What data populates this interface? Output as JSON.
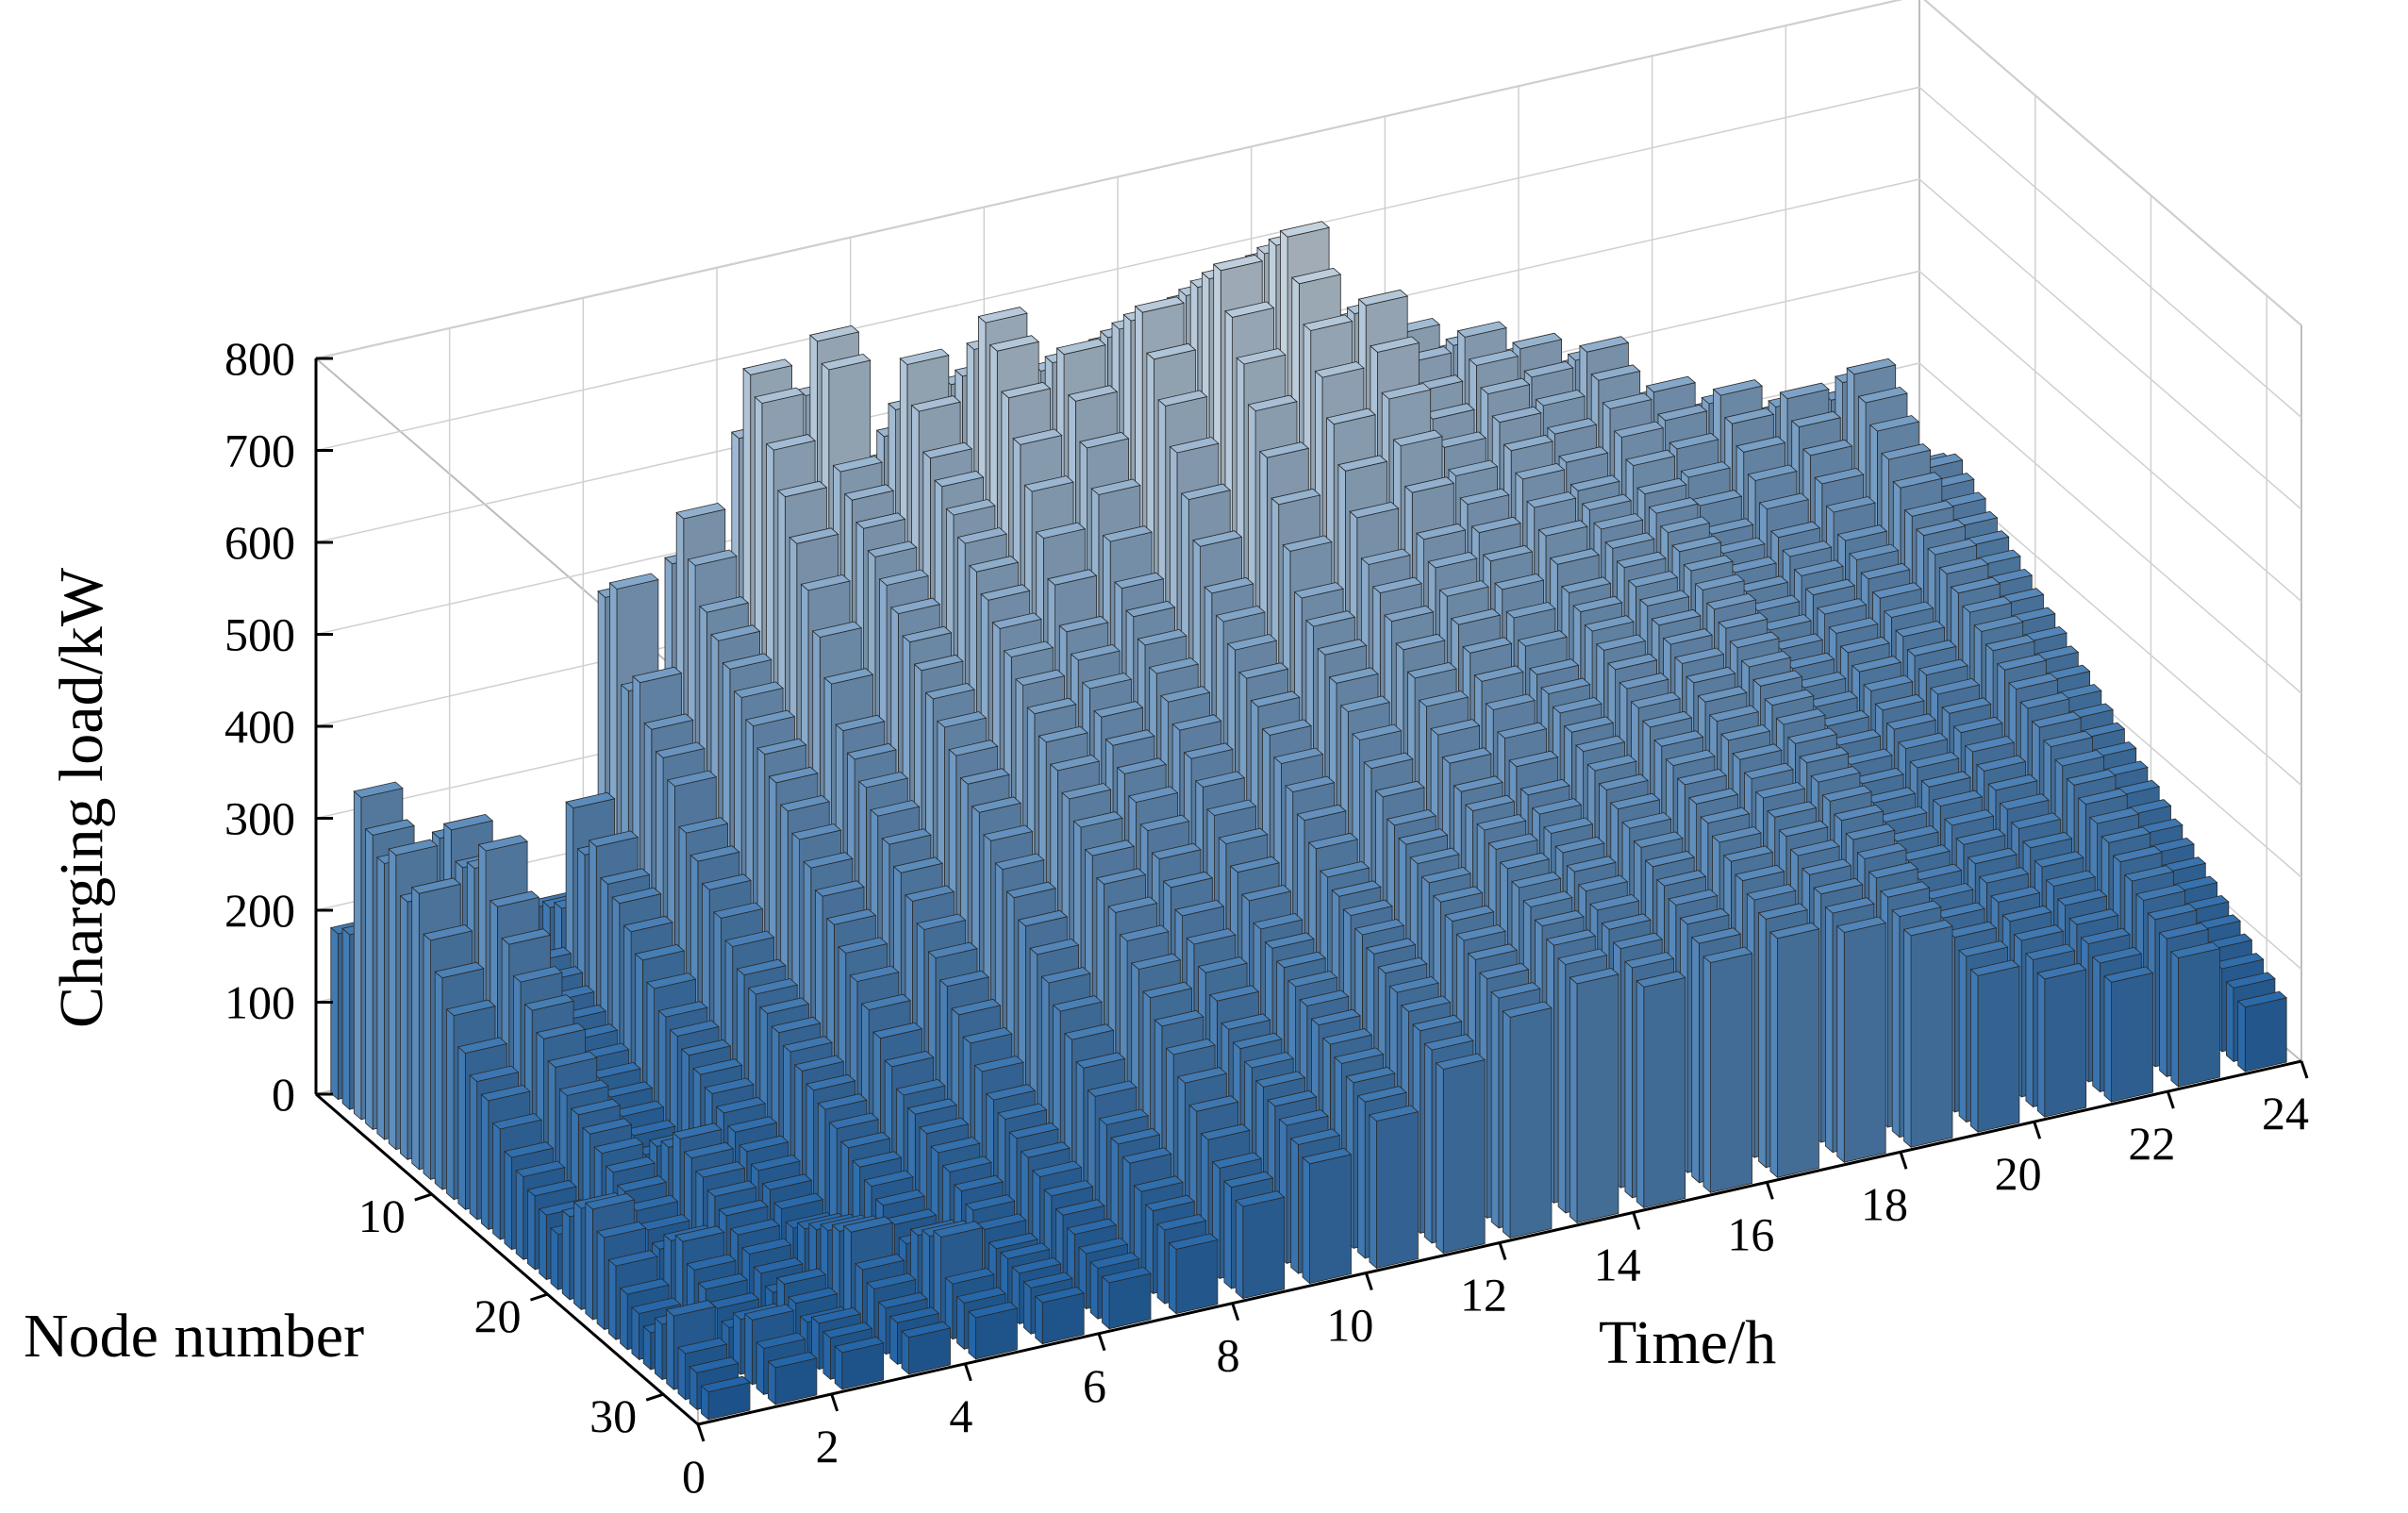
{
  "chart_data": {
    "type": "bar3d",
    "ylabel": "Charging load/kW",
    "xlabel": "Time/h",
    "zlabel": "Node number",
    "ylim": [
      0,
      800
    ],
    "xlim": [
      0,
      24
    ],
    "zlim": [
      0,
      33
    ],
    "y_ticks": [
      "0",
      "100",
      "200",
      "300",
      "400",
      "500",
      "600",
      "700",
      "800"
    ],
    "x_ticks": [
      "0",
      "2",
      "4",
      "6",
      "8",
      "10",
      "12",
      "14",
      "16",
      "18",
      "20",
      "22",
      "24"
    ],
    "z_ticks": [
      "10",
      "20",
      "30"
    ],
    "grid": true,
    "hours": [
      1,
      2,
      3,
      4,
      5,
      6,
      7,
      8,
      9,
      10,
      11,
      12,
      13,
      14,
      15,
      16,
      17,
      18,
      19,
      20,
      21,
      22,
      23,
      24
    ],
    "nodes": [
      1,
      2,
      3,
      4,
      5,
      6,
      7,
      8,
      9,
      10,
      11,
      12,
      13,
      14,
      15,
      16,
      17,
      18,
      19,
      20,
      21,
      22,
      23,
      24,
      25,
      26,
      27,
      28,
      29,
      30,
      31,
      32,
      33
    ],
    "profile_note": "Charging load per hour for each of 33 nodes (estimated from figure)",
    "hourly_envelope": [
      380,
      360,
      300,
      310,
      520,
      560,
      720,
      740,
      700,
      760,
      700,
      740,
      780,
      800,
      720,
      650,
      620,
      580,
      560,
      500,
      480,
      460,
      470,
      350
    ],
    "values_by_hour": [
      [
        180,
        190,
        350,
        320,
        300,
        320,
        280,
        300,
        260,
        230,
        200,
        170,
        150,
        140,
        120,
        100,
        90,
        80,
        70,
        60,
        90,
        110,
        120,
        100,
        80,
        60,
        50,
        40,
        60,
        80,
        50,
        40,
        30
      ],
      [
        200,
        180,
        160,
        300,
        320,
        290,
        300,
        330,
        280,
        250,
        220,
        200,
        180,
        160,
        140,
        130,
        120,
        110,
        100,
        90,
        80,
        70,
        60,
        80,
        90,
        70,
        60,
        50,
        40,
        60,
        70,
        50,
        40
      ],
      [
        150,
        140,
        130,
        120,
        110,
        170,
        160,
        150,
        140,
        130,
        120,
        110,
        100,
        90,
        80,
        70,
        90,
        100,
        120,
        110,
        100,
        90,
        80,
        70,
        60,
        50,
        40,
        60,
        50,
        40,
        50,
        45,
        40
      ],
      [
        160,
        170,
        180,
        300,
        260,
        280,
        250,
        240,
        220,
        200,
        180,
        160,
        150,
        140,
        130,
        120,
        110,
        100,
        90,
        80,
        70,
        60,
        50,
        60,
        70,
        80,
        90,
        100,
        70,
        60,
        50,
        45,
        40
      ],
      [
        480,
        500,
        400,
        420,
        380,
        360,
        340,
        300,
        280,
        260,
        240,
        220,
        200,
        190,
        180,
        170,
        160,
        150,
        140,
        130,
        120,
        110,
        100,
        90,
        80,
        70,
        60,
        80,
        90,
        100,
        60,
        50,
        45
      ],
      [
        500,
        560,
        520,
        480,
        460,
        440,
        420,
        400,
        380,
        360,
        340,
        320,
        300,
        280,
        260,
        240,
        220,
        200,
        180,
        160,
        140,
        130,
        120,
        110,
        100,
        90,
        80,
        70,
        60,
        60,
        55,
        50,
        45
      ],
      [
        620,
        700,
        680,
        640,
        600,
        560,
        520,
        480,
        440,
        400,
        380,
        360,
        340,
        320,
        300,
        280,
        260,
        240,
        220,
        200,
        180,
        160,
        140,
        130,
        120,
        110,
        100,
        90,
        80,
        70,
        60,
        55,
        50
      ],
      [
        650,
        720,
        700,
        600,
        580,
        560,
        540,
        520,
        500,
        480,
        460,
        440,
        420,
        400,
        380,
        360,
        340,
        320,
        300,
        280,
        260,
        240,
        220,
        200,
        180,
        160,
        140,
        130,
        120,
        100,
        90,
        80,
        70
      ],
      [
        560,
        600,
        640,
        700,
        660,
        620,
        600,
        580,
        560,
        540,
        520,
        500,
        480,
        460,
        440,
        420,
        400,
        380,
        360,
        340,
        320,
        300,
        280,
        260,
        240,
        220,
        200,
        180,
        160,
        140,
        120,
        110,
        100
      ],
      [
        580,
        640,
        660,
        700,
        740,
        720,
        680,
        640,
        600,
        560,
        520,
        480,
        460,
        440,
        420,
        400,
        380,
        360,
        340,
        320,
        300,
        280,
        260,
        240,
        220,
        200,
        190,
        180,
        170,
        160,
        150,
        140,
        130
      ],
      [
        600,
        620,
        640,
        660,
        680,
        700,
        660,
        620,
        580,
        540,
        500,
        480,
        460,
        440,
        420,
        400,
        380,
        360,
        340,
        320,
        300,
        280,
        260,
        250,
        240,
        230,
        220,
        210,
        200,
        190,
        180,
        170,
        160
      ],
      [
        620,
        640,
        660,
        680,
        700,
        720,
        740,
        700,
        660,
        620,
        580,
        540,
        500,
        480,
        460,
        440,
        420,
        400,
        380,
        360,
        340,
        320,
        300,
        290,
        280,
        270,
        260,
        250,
        240,
        230,
        220,
        210,
        200
      ],
      [
        640,
        660,
        680,
        700,
        720,
        740,
        760,
        780,
        740,
        700,
        660,
        620,
        580,
        540,
        500,
        480,
        460,
        440,
        420,
        400,
        380,
        360,
        340,
        330,
        320,
        310,
        300,
        290,
        280,
        270,
        260,
        250,
        240
      ],
      [
        660,
        680,
        700,
        720,
        740,
        760,
        780,
        800,
        760,
        720,
        680,
        640,
        600,
        560,
        520,
        500,
        480,
        460,
        440,
        420,
        400,
        380,
        360,
        350,
        340,
        330,
        320,
        310,
        300,
        290,
        280,
        270,
        260
      ],
      [
        560,
        580,
        600,
        620,
        640,
        660,
        680,
        700,
        720,
        680,
        640,
        600,
        560,
        520,
        500,
        480,
        460,
        440,
        420,
        400,
        380,
        360,
        340,
        330,
        320,
        310,
        300,
        290,
        280,
        270,
        260,
        250,
        240
      ],
      [
        540,
        560,
        580,
        600,
        620,
        640,
        620,
        600,
        580,
        560,
        540,
        520,
        500,
        480,
        460,
        440,
        420,
        400,
        390,
        380,
        370,
        360,
        350,
        340,
        330,
        320,
        310,
        300,
        290,
        280,
        270,
        260,
        250
      ],
      [
        520,
        540,
        560,
        580,
        600,
        620,
        600,
        580,
        560,
        540,
        520,
        500,
        480,
        460,
        440,
        430,
        420,
        410,
        400,
        390,
        380,
        370,
        360,
        350,
        340,
        330,
        320,
        310,
        300,
        290,
        280,
        270,
        260
      ],
      [
        500,
        520,
        540,
        560,
        580,
        560,
        540,
        520,
        500,
        480,
        470,
        460,
        450,
        440,
        430,
        420,
        410,
        400,
        390,
        380,
        370,
        360,
        350,
        340,
        330,
        320,
        310,
        300,
        290,
        280,
        270,
        260,
        250
      ],
      [
        480,
        500,
        520,
        540,
        560,
        540,
        520,
        500,
        480,
        460,
        450,
        440,
        430,
        420,
        410,
        400,
        390,
        380,
        370,
        360,
        350,
        340,
        330,
        320,
        310,
        300,
        290,
        280,
        270,
        260,
        250,
        240,
        230
      ],
      [
        420,
        440,
        460,
        480,
        500,
        480,
        460,
        440,
        420,
        400,
        390,
        380,
        370,
        360,
        350,
        340,
        330,
        320,
        310,
        300,
        290,
        280,
        270,
        260,
        250,
        240,
        230,
        220,
        210,
        200,
        190,
        180,
        170
      ],
      [
        400,
        420,
        440,
        460,
        480,
        460,
        440,
        420,
        400,
        380,
        370,
        360,
        350,
        340,
        330,
        320,
        310,
        300,
        290,
        280,
        270,
        260,
        250,
        240,
        230,
        220,
        210,
        200,
        190,
        180,
        170,
        160,
        150
      ],
      [
        380,
        400,
        420,
        440,
        460,
        440,
        420,
        400,
        380,
        360,
        350,
        340,
        330,
        320,
        310,
        300,
        290,
        280,
        270,
        260,
        250,
        240,
        230,
        220,
        210,
        200,
        190,
        180,
        170,
        160,
        150,
        140,
        130
      ],
      [
        380,
        400,
        420,
        450,
        470,
        450,
        430,
        410,
        390,
        370,
        360,
        350,
        340,
        330,
        320,
        310,
        300,
        290,
        280,
        270,
        260,
        250,
        240,
        230,
        220,
        210,
        200,
        190,
        180,
        170,
        160,
        150,
        140
      ],
      [
        280,
        300,
        320,
        340,
        350,
        340,
        330,
        320,
        310,
        300,
        290,
        280,
        270,
        260,
        250,
        240,
        230,
        220,
        210,
        200,
        190,
        180,
        170,
        160,
        150,
        140,
        130,
        120,
        110,
        100,
        90,
        80,
        70
      ]
    ]
  }
}
